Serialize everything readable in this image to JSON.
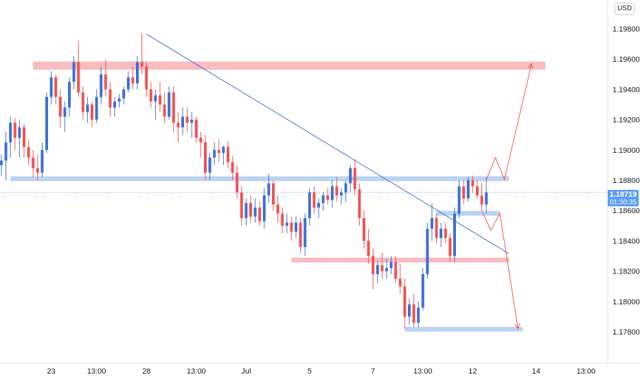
{
  "currency": "USD",
  "last_price": "1.18719",
  "countdown": "01:30:35",
  "colors": {
    "up": "#3d6fd1",
    "down": "#ef5350",
    "trend": "#3d6fd1",
    "support_zone": "#bcd3f2",
    "resistance_zone": "#f6bcbf",
    "arrow": "#ef5350"
  },
  "chart_data": {
    "type": "candlestick",
    "title": "",
    "y_ticks": [
      "1.19800",
      "1.19600",
      "1.19400",
      "1.19200",
      "1.19000",
      "1.18800",
      "1.18600",
      "1.18400",
      "1.18200",
      "1.18000",
      "1.17800"
    ],
    "x_ticks": [
      {
        "label": "23",
        "index": 11
      },
      {
        "label": "13:00",
        "index": 21
      },
      {
        "label": "28",
        "index": 32
      },
      {
        "label": "13:00",
        "index": 43
      },
      {
        "label": "Jul",
        "index": 54
      },
      {
        "label": "5",
        "index": 68
      },
      {
        "label": "7",
        "index": 82
      },
      {
        "label": "13:00",
        "index": 93
      },
      {
        "label": "12",
        "index": 104
      },
      {
        "label": "14",
        "index": 118
      },
      {
        "label": "13:00",
        "index": 129
      }
    ],
    "ylim": [
      1.177,
      1.1995
    ],
    "candles": [
      [
        1.189,
        1.1897,
        1.1883,
        1.1893
      ],
      [
        1.1893,
        1.1912,
        1.188,
        1.1905
      ],
      [
        1.1905,
        1.1922,
        1.1895,
        1.1918
      ],
      [
        1.1918,
        1.1921,
        1.19,
        1.1908
      ],
      [
        1.1908,
        1.192,
        1.1895,
        1.1915
      ],
      [
        1.1915,
        1.1917,
        1.1895,
        1.1902
      ],
      [
        1.1902,
        1.1907,
        1.189,
        1.1895
      ],
      [
        1.1895,
        1.19,
        1.1882,
        1.1888
      ],
      [
        1.1888,
        1.1897,
        1.188,
        1.1885
      ],
      [
        1.1885,
        1.1905,
        1.1882,
        1.19
      ],
      [
        1.19,
        1.1938,
        1.1898,
        1.1935
      ],
      [
        1.1935,
        1.1952,
        1.193,
        1.1948
      ],
      [
        1.1948,
        1.195,
        1.193,
        1.1935
      ],
      [
        1.1935,
        1.194,
        1.1915,
        1.1922
      ],
      [
        1.1922,
        1.1932,
        1.1912,
        1.1928
      ],
      [
        1.1928,
        1.1948,
        1.1922,
        1.1945
      ],
      [
        1.1945,
        1.1962,
        1.194,
        1.1958
      ],
      [
        1.1958,
        1.1972,
        1.1935,
        1.1938
      ],
      [
        1.1938,
        1.1942,
        1.192,
        1.1925
      ],
      [
        1.1925,
        1.1935,
        1.1918,
        1.193
      ],
      [
        1.193,
        1.1932,
        1.1915,
        1.192
      ],
      [
        1.192,
        1.194,
        1.1918,
        1.1935
      ],
      [
        1.1935,
        1.1955,
        1.193,
        1.195
      ],
      [
        1.195,
        1.196,
        1.1935,
        1.194
      ],
      [
        1.194,
        1.1945,
        1.1922,
        1.1928
      ],
      [
        1.1928,
        1.1935,
        1.1922,
        1.1932
      ],
      [
        1.1932,
        1.1937,
        1.1928,
        1.1934
      ],
      [
        1.1934,
        1.1942,
        1.193,
        1.194
      ],
      [
        1.194,
        1.1952,
        1.1938,
        1.1948
      ],
      [
        1.1948,
        1.1955,
        1.194,
        1.1944
      ],
      [
        1.1944,
        1.1962,
        1.194,
        1.1958
      ],
      [
        1.1958,
        1.1977,
        1.195,
        1.1955
      ],
      [
        1.1955,
        1.1958,
        1.1935,
        1.194
      ],
      [
        1.194,
        1.1945,
        1.1928,
        1.1932
      ],
      [
        1.1932,
        1.194,
        1.192,
        1.1936
      ],
      [
        1.1936,
        1.1945,
        1.1925,
        1.193
      ],
      [
        1.193,
        1.1938,
        1.1918,
        1.1922
      ],
      [
        1.1922,
        1.1942,
        1.192,
        1.1938
      ],
      [
        1.1938,
        1.1942,
        1.1912,
        1.1918
      ],
      [
        1.1918,
        1.1925,
        1.1905,
        1.1915
      ],
      [
        1.1915,
        1.1928,
        1.191,
        1.1922
      ],
      [
        1.1922,
        1.1928,
        1.1912,
        1.1918
      ],
      [
        1.1918,
        1.1925,
        1.1908,
        1.192
      ],
      [
        1.192,
        1.1922,
        1.1905,
        1.1908
      ],
      [
        1.1908,
        1.1912,
        1.1895,
        1.1905
      ],
      [
        1.1905,
        1.191,
        1.188,
        1.1885
      ],
      [
        1.1885,
        1.1898,
        1.188,
        1.1895
      ],
      [
        1.1895,
        1.1905,
        1.189,
        1.19
      ],
      [
        1.19,
        1.1907,
        1.1892,
        1.1898
      ],
      [
        1.1898,
        1.1903,
        1.189,
        1.1902
      ],
      [
        1.1902,
        1.1906,
        1.1888,
        1.1892
      ],
      [
        1.1892,
        1.1896,
        1.188,
        1.1885
      ],
      [
        1.1885,
        1.189,
        1.1868,
        1.1872
      ],
      [
        1.1872,
        1.1876,
        1.185,
        1.1855
      ],
      [
        1.1855,
        1.1868,
        1.185,
        1.1865
      ],
      [
        1.1865,
        1.187,
        1.1852,
        1.1856
      ],
      [
        1.1856,
        1.1868,
        1.1852,
        1.1862
      ],
      [
        1.1862,
        1.1866,
        1.185,
        1.1853
      ],
      [
        1.1853,
        1.1875,
        1.1848,
        1.187
      ],
      [
        1.187,
        1.1884,
        1.1865,
        1.1878
      ],
      [
        1.1878,
        1.188,
        1.186,
        1.1864
      ],
      [
        1.1864,
        1.187,
        1.1852,
        1.1858
      ],
      [
        1.1858,
        1.1862,
        1.1845,
        1.185
      ],
      [
        1.185,
        1.1858,
        1.1845,
        1.1852
      ],
      [
        1.1852,
        1.1856,
        1.184,
        1.1846
      ],
      [
        1.1846,
        1.1856,
        1.1842,
        1.1852
      ],
      [
        1.1852,
        1.1855,
        1.1832,
        1.1836
      ],
      [
        1.1836,
        1.1858,
        1.183,
        1.1855
      ],
      [
        1.1855,
        1.1875,
        1.185,
        1.1872
      ],
      [
        1.1872,
        1.1876,
        1.1858,
        1.1862
      ],
      [
        1.1862,
        1.1868,
        1.1855,
        1.1865
      ],
      [
        1.1865,
        1.1872,
        1.186,
        1.187
      ],
      [
        1.187,
        1.1875,
        1.1864,
        1.1867
      ],
      [
        1.1867,
        1.188,
        1.1862,
        1.1876
      ],
      [
        1.1876,
        1.1882,
        1.1866,
        1.187
      ],
      [
        1.187,
        1.1875,
        1.1864,
        1.1872
      ],
      [
        1.1872,
        1.188,
        1.1866,
        1.1878
      ],
      [
        1.1878,
        1.189,
        1.1872,
        1.1888
      ],
      [
        1.1888,
        1.1894,
        1.187,
        1.1874
      ],
      [
        1.1874,
        1.1878,
        1.185,
        1.1855
      ],
      [
        1.1855,
        1.186,
        1.1835,
        1.184
      ],
      [
        1.184,
        1.1848,
        1.1825,
        1.183
      ],
      [
        1.183,
        1.1835,
        1.1808,
        1.1818
      ],
      [
        1.1818,
        1.1827,
        1.1812,
        1.1824
      ],
      [
        1.1824,
        1.1832,
        1.1815,
        1.182
      ],
      [
        1.182,
        1.1828,
        1.1815,
        1.1822
      ],
      [
        1.1822,
        1.183,
        1.1818,
        1.1826
      ],
      [
        1.1826,
        1.183,
        1.1812,
        1.1815
      ],
      [
        1.1815,
        1.1825,
        1.1805,
        1.181
      ],
      [
        1.181,
        1.1815,
        1.1782,
        1.179
      ],
      [
        1.179,
        1.1802,
        1.1785,
        1.1798
      ],
      [
        1.1798,
        1.1805,
        1.1783,
        1.1786
      ],
      [
        1.1786,
        1.18,
        1.1783,
        1.1796
      ],
      [
        1.1796,
        1.1822,
        1.1794,
        1.1818
      ],
      [
        1.1818,
        1.1852,
        1.1815,
        1.1848
      ],
      [
        1.1848,
        1.1865,
        1.184,
        1.1855
      ],
      [
        1.1855,
        1.1858,
        1.1838,
        1.1842
      ],
      [
        1.1842,
        1.1852,
        1.1836,
        1.1848
      ],
      [
        1.1848,
        1.1852,
        1.1838,
        1.1842
      ],
      [
        1.1842,
        1.1845,
        1.1826,
        1.183
      ],
      [
        1.183,
        1.1862,
        1.1826,
        1.1858
      ],
      [
        1.1858,
        1.188,
        1.1855,
        1.1876
      ],
      [
        1.1876,
        1.188,
        1.1864,
        1.1868
      ],
      [
        1.1868,
        1.1882,
        1.1866,
        1.188
      ],
      [
        1.188,
        1.1883,
        1.1872,
        1.1876
      ],
      [
        1.1876,
        1.188,
        1.1868,
        1.187
      ],
      [
        1.187,
        1.1878,
        1.186,
        1.1864
      ],
      [
        1.1864,
        1.1882,
        1.1858,
        1.1872
      ]
    ],
    "support_zones": [
      {
        "from_index": 2,
        "to_index": 112,
        "y": 1.1881
      },
      {
        "from_index": 89,
        "to_index": 115,
        "y": 1.17817
      },
      {
        "from_index": 96,
        "to_index": 110,
        "y": 1.18582
      }
    ],
    "resistance_zones": [
      {
        "from_index": 7,
        "to_index": 120,
        "y": 1.19557
      },
      {
        "from_index": 64,
        "to_index": 112,
        "y": 1.18262
      }
    ],
    "trendline": {
      "from": [
        32,
        1.19765
      ],
      "to": [
        112,
        1.18315
      ]
    },
    "projections": [
      {
        "points": [
          [
            107,
            1.18806
          ],
          [
            109,
            1.1895
          ],
          [
            111,
            1.18806
          ],
          [
            117,
            1.1957
          ]
        ]
      },
      {
        "points": [
          [
            106,
            1.18598
          ],
          [
            108,
            1.1847
          ],
          [
            110,
            1.1858
          ],
          [
            114,
            1.1782
          ]
        ]
      }
    ]
  }
}
